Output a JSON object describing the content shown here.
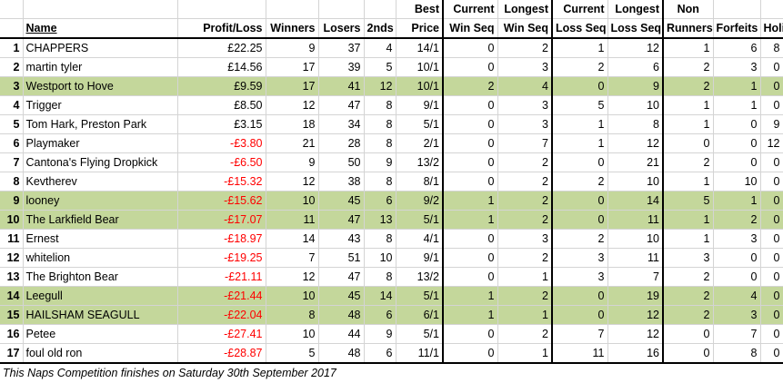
{
  "headers": {
    "name": "Name",
    "profit_loss": "Profit/Loss",
    "winners": "Winners",
    "losers": "Losers",
    "seconds": "2nds",
    "best_price": [
      "Best",
      "Price"
    ],
    "current_win_seq": [
      "Current",
      "Win Seq"
    ],
    "longest_win_seq": [
      "Longest",
      "Win Seq"
    ],
    "current_loss_seq": [
      "Current",
      "Loss Seq"
    ],
    "longest_loss_seq": [
      "Longest",
      "Loss Seq"
    ],
    "non_runners": [
      "Non",
      "Runners"
    ],
    "forfeits": "Forfeits",
    "holiday": "Holiday"
  },
  "rows": [
    {
      "rank": "1",
      "name": "CHAPPERS",
      "pl": "£22.25",
      "neg": false,
      "w": "9",
      "l": "37",
      "s": "4",
      "bp": "14/1",
      "cw": "0",
      "lw": "2",
      "cl": "1",
      "ll": "12",
      "nr": "1",
      "f": "6",
      "h": "8",
      "hl": false
    },
    {
      "rank": "2",
      "name": "martin tyler",
      "pl": "£14.56",
      "neg": false,
      "w": "17",
      "l": "39",
      "s": "5",
      "bp": "10/1",
      "cw": "0",
      "lw": "3",
      "cl": "2",
      "ll": "6",
      "nr": "2",
      "f": "3",
      "h": "0",
      "hl": false
    },
    {
      "rank": "3",
      "name": "Westport to Hove",
      "pl": "£9.59",
      "neg": false,
      "w": "17",
      "l": "41",
      "s": "12",
      "bp": "10/1",
      "cw": "2",
      "lw": "4",
      "cl": "0",
      "ll": "9",
      "nr": "2",
      "f": "1",
      "h": "0",
      "hl": true
    },
    {
      "rank": "4",
      "name": "Trigger",
      "pl": "£8.50",
      "neg": false,
      "w": "12",
      "l": "47",
      "s": "8",
      "bp": "9/1",
      "cw": "0",
      "lw": "3",
      "cl": "5",
      "ll": "10",
      "nr": "1",
      "f": "1",
      "h": "0",
      "hl": false
    },
    {
      "rank": "5",
      "name": "Tom Hark, Preston Park",
      "pl": "£3.15",
      "neg": false,
      "w": "18",
      "l": "34",
      "s": "8",
      "bp": "5/1",
      "cw": "0",
      "lw": "3",
      "cl": "1",
      "ll": "8",
      "nr": "1",
      "f": "0",
      "h": "9",
      "hl": false
    },
    {
      "rank": "6",
      "name": "Playmaker",
      "pl": "-£3.80",
      "neg": true,
      "w": "21",
      "l": "28",
      "s": "8",
      "bp": "2/1",
      "cw": "0",
      "lw": "7",
      "cl": "1",
      "ll": "12",
      "nr": "0",
      "f": "0",
      "h": "12",
      "hl": false
    },
    {
      "rank": "7",
      "name": "Cantona's Flying Dropkick",
      "pl": "-£6.50",
      "neg": true,
      "w": "9",
      "l": "50",
      "s": "9",
      "bp": "13/2",
      "cw": "0",
      "lw": "2",
      "cl": "0",
      "ll": "21",
      "nr": "2",
      "f": "0",
      "h": "0",
      "hl": false
    },
    {
      "rank": "8",
      "name": "Kevtherev",
      "pl": "-£15.32",
      "neg": true,
      "w": "12",
      "l": "38",
      "s": "8",
      "bp": "8/1",
      "cw": "0",
      "lw": "2",
      "cl": "2",
      "ll": "10",
      "nr": "1",
      "f": "10",
      "h": "0",
      "hl": false
    },
    {
      "rank": "9",
      "name": "looney",
      "pl": "-£15.62",
      "neg": true,
      "w": "10",
      "l": "45",
      "s": "6",
      "bp": "9/2",
      "cw": "1",
      "lw": "2",
      "cl": "0",
      "ll": "14",
      "nr": "5",
      "f": "1",
      "h": "0",
      "hl": true
    },
    {
      "rank": "10",
      "name": "The Larkfield Bear",
      "pl": "-£17.07",
      "neg": true,
      "w": "11",
      "l": "47",
      "s": "13",
      "bp": "5/1",
      "cw": "1",
      "lw": "2",
      "cl": "0",
      "ll": "11",
      "nr": "1",
      "f": "2",
      "h": "0",
      "hl": true
    },
    {
      "rank": "11",
      "name": "Ernest",
      "pl": "-£18.97",
      "neg": true,
      "w": "14",
      "l": "43",
      "s": "8",
      "bp": "4/1",
      "cw": "0",
      "lw": "3",
      "cl": "2",
      "ll": "10",
      "nr": "1",
      "f": "3",
      "h": "0",
      "hl": false
    },
    {
      "rank": "12",
      "name": "whitelion",
      "pl": "-£19.25",
      "neg": true,
      "w": "7",
      "l": "51",
      "s": "10",
      "bp": "9/1",
      "cw": "0",
      "lw": "2",
      "cl": "3",
      "ll": "11",
      "nr": "3",
      "f": "0",
      "h": "0",
      "hl": false
    },
    {
      "rank": "13",
      "name": "The Brighton Bear",
      "pl": "-£21.11",
      "neg": true,
      "w": "12",
      "l": "47",
      "s": "8",
      "bp": "13/2",
      "cw": "0",
      "lw": "1",
      "cl": "3",
      "ll": "7",
      "nr": "2",
      "f": "0",
      "h": "0",
      "hl": false
    },
    {
      "rank": "14",
      "name": "Leegull",
      "pl": "-£21.44",
      "neg": true,
      "w": "10",
      "l": "45",
      "s": "14",
      "bp": "5/1",
      "cw": "1",
      "lw": "2",
      "cl": "0",
      "ll": "19",
      "nr": "2",
      "f": "4",
      "h": "0",
      "hl": true
    },
    {
      "rank": "15",
      "name": "HAILSHAM SEAGULL",
      "pl": "-£22.04",
      "neg": true,
      "w": "8",
      "l": "48",
      "s": "6",
      "bp": "6/1",
      "cw": "1",
      "lw": "1",
      "cl": "0",
      "ll": "12",
      "nr": "2",
      "f": "3",
      "h": "0",
      "hl": true
    },
    {
      "rank": "16",
      "name": "Petee",
      "pl": "-£27.41",
      "neg": true,
      "w": "10",
      "l": "44",
      "s": "9",
      "bp": "5/1",
      "cw": "0",
      "lw": "2",
      "cl": "7",
      "ll": "12",
      "nr": "0",
      "f": "7",
      "h": "0",
      "hl": false
    },
    {
      "rank": "17",
      "name": "foul old ron",
      "pl": "-£28.87",
      "neg": true,
      "w": "5",
      "l": "48",
      "s": "6",
      "bp": "11/1",
      "cw": "0",
      "lw": "1",
      "cl": "11",
      "ll": "16",
      "nr": "0",
      "f": "8",
      "h": "0",
      "hl": false
    }
  ],
  "footer": "This Naps Competition finishes on Saturday 30th September 2017",
  "colors": {
    "highlight": "#c4d79b",
    "negative": "#ff0000",
    "border": "#000000",
    "gridline": "#d4d4d4"
  }
}
